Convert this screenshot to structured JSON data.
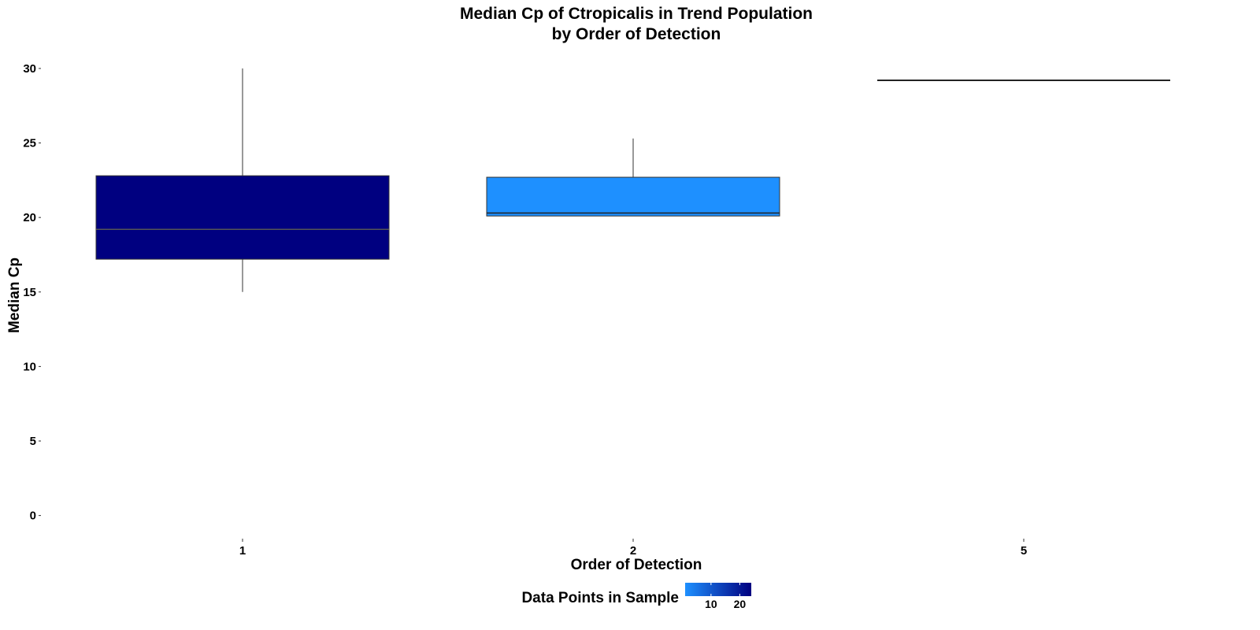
{
  "chart_data": {
    "type": "boxplot",
    "title": "Median Cp of Ctropicalis in Trend Population",
    "subtitle": "by Order of Detection",
    "xlabel": "Order of Detection",
    "ylabel": "Median Cp",
    "ylim": [
      -1.5,
      31
    ],
    "yticks": [
      0,
      5,
      10,
      15,
      20,
      25,
      30
    ],
    "grid": false,
    "categories": [
      "1",
      "2",
      "5"
    ],
    "boxes": [
      {
        "category": "1",
        "min": 15.0,
        "q1": 17.2,
        "median": 19.2,
        "q3": 22.8,
        "max": 30.0,
        "n": 24,
        "color": "#000080"
      },
      {
        "category": "2",
        "min": 20.1,
        "q1": 20.1,
        "median": 20.3,
        "q3": 22.7,
        "max": 25.3,
        "n": 2,
        "color": "#1E90FF"
      },
      {
        "category": "5",
        "min": 29.2,
        "q1": 29.2,
        "median": 29.2,
        "q3": 29.2,
        "max": 29.2,
        "n": 1,
        "color": "#1E90FF"
      }
    ],
    "legend": {
      "title": "Data Points in Sample",
      "position": "bottom",
      "low_color": "#1E90FF",
      "high_color": "#000080",
      "range": [
        1,
        24
      ],
      "ticks": [
        10,
        20
      ]
    }
  }
}
